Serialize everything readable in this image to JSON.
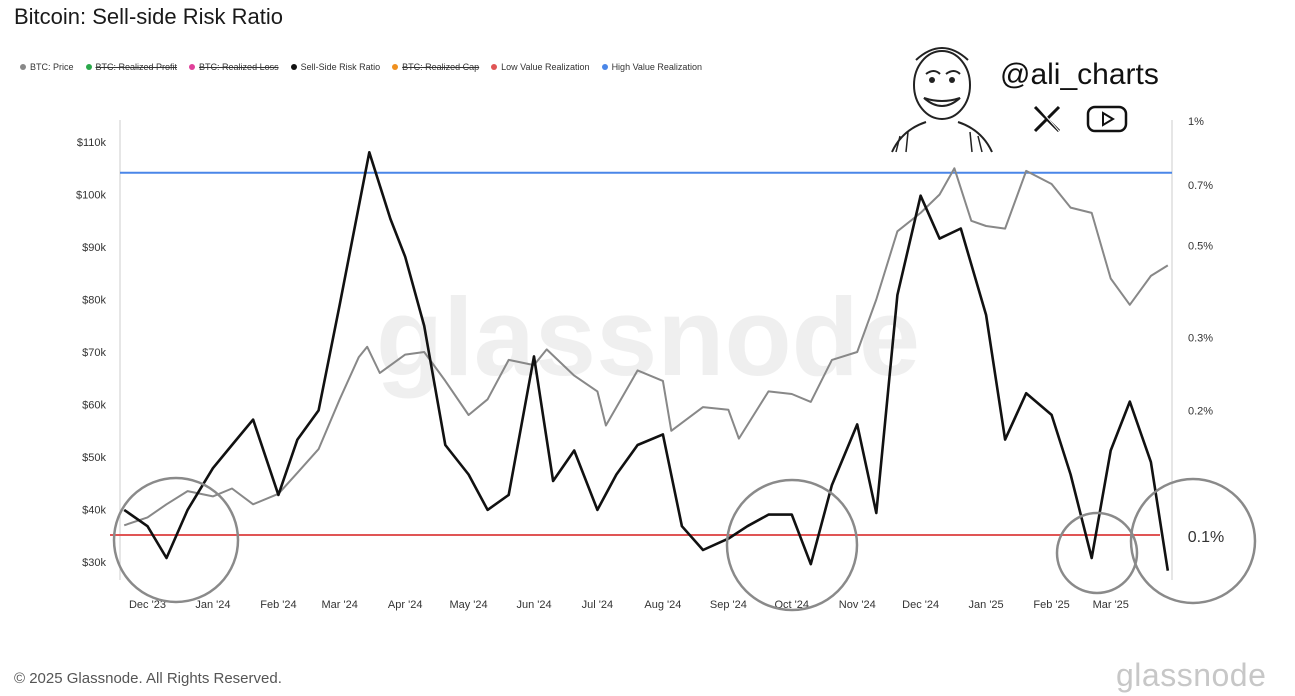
{
  "title": "Bitcoin: Sell-side Risk Ratio",
  "handle": "@ali_charts",
  "copyright": "© 2025 Glassnode. All Rights Reserved.",
  "footer_logo": "glassnode",
  "watermark": "glassnode",
  "legend": [
    {
      "label": "BTC: Price",
      "color": "#888888",
      "struck": false
    },
    {
      "label": "BTC: Realized Profit",
      "color": "#2aa84a",
      "struck": true
    },
    {
      "label": "BTC: Realized Loss",
      "color": "#e0409a",
      "struck": true
    },
    {
      "label": "Sell-Side Risk Ratio",
      "color": "#111111",
      "struck": false
    },
    {
      "label": "BTC: Realized Cap",
      "color": "#f0901e",
      "struck": true
    },
    {
      "label": "Low Value Realization",
      "color": "#e05555",
      "struck": false
    },
    {
      "label": "High Value Realization",
      "color": "#4a86e8",
      "struck": false
    }
  ],
  "annotation_label": "0.1%",
  "chart_data": {
    "type": "line",
    "title": "Bitcoin: Sell-side Risk Ratio",
    "x_ticks": [
      "Dec '23",
      "Jan '24",
      "Feb '24",
      "Mar '24",
      "Apr '24",
      "May '24",
      "Jun '24",
      "Jul '24",
      "Aug '24",
      "Sep '24",
      "Oct '24",
      "Nov '24",
      "Dec '24",
      "Jan '25",
      "Feb '25",
      "Mar '25"
    ],
    "y_left_ticks": [
      "$30k",
      "$40k",
      "$50k",
      "$60k",
      "$70k",
      "$80k",
      "$90k",
      "$100k",
      "$110k"
    ],
    "y_left_range": [
      30000,
      110000
    ],
    "y_right_ticks": [
      "0.1%",
      "0.2%",
      "0.3%",
      "0.5%",
      "0.7%",
      "1%"
    ],
    "y_right_scale": "log",
    "low_value_realization": 0.1,
    "high_value_realization": 0.75,
    "series": [
      {
        "name": "BTC: Price",
        "color": "#888888",
        "axis": "left",
        "x": [
          "2023-11-20",
          "2023-12-01",
          "2023-12-10",
          "2023-12-20",
          "2024-01-01",
          "2024-01-10",
          "2024-01-20",
          "2024-02-01",
          "2024-02-10",
          "2024-02-20",
          "2024-03-01",
          "2024-03-10",
          "2024-03-14",
          "2024-03-20",
          "2024-04-01",
          "2024-04-10",
          "2024-04-20",
          "2024-05-01",
          "2024-05-10",
          "2024-05-20",
          "2024-06-01",
          "2024-06-07",
          "2024-06-20",
          "2024-07-01",
          "2024-07-05",
          "2024-07-20",
          "2024-08-01",
          "2024-08-05",
          "2024-08-20",
          "2024-09-01",
          "2024-09-06",
          "2024-09-20",
          "2024-10-01",
          "2024-10-10",
          "2024-10-20",
          "2024-11-01",
          "2024-11-10",
          "2024-11-20",
          "2024-12-01",
          "2024-12-10",
          "2024-12-17",
          "2024-12-25",
          "2025-01-01",
          "2025-01-10",
          "2025-01-20",
          "2025-02-01",
          "2025-02-10",
          "2025-02-20",
          "2025-03-01",
          "2025-03-10",
          "2025-03-20",
          "2025-03-28"
        ],
        "y": [
          37000,
          38500,
          41000,
          43500,
          42500,
          44000,
          41000,
          43000,
          47000,
          51500,
          61000,
          69000,
          71000,
          66000,
          69500,
          70000,
          64500,
          58000,
          61000,
          68500,
          67500,
          70500,
          65500,
          62500,
          56000,
          66500,
          64500,
          55000,
          59500,
          59000,
          53500,
          62500,
          62000,
          60500,
          68500,
          70000,
          80000,
          93000,
          96500,
          100000,
          105000,
          95000,
          94000,
          93500,
          104500,
          102000,
          97500,
          96500,
          84000,
          79000,
          84500,
          86500
        ]
      },
      {
        "name": "Sell-Side Risk Ratio",
        "color": "#111111",
        "axis": "right",
        "x": [
          "2023-11-20",
          "2023-12-01",
          "2023-12-10",
          "2023-12-20",
          "2024-01-01",
          "2024-01-10",
          "2024-01-20",
          "2024-02-01",
          "2024-02-10",
          "2024-02-20",
          "2024-03-01",
          "2024-03-10",
          "2024-03-15",
          "2024-03-25",
          "2024-04-01",
          "2024-04-10",
          "2024-04-20",
          "2024-05-01",
          "2024-05-10",
          "2024-05-20",
          "2024-06-01",
          "2024-06-10",
          "2024-06-20",
          "2024-07-01",
          "2024-07-10",
          "2024-07-20",
          "2024-08-01",
          "2024-08-10",
          "2024-08-20",
          "2024-09-01",
          "2024-09-10",
          "2024-09-20",
          "2024-10-01",
          "2024-10-10",
          "2024-10-20",
          "2024-11-01",
          "2024-11-10",
          "2024-11-20",
          "2024-12-01",
          "2024-12-10",
          "2024-12-20",
          "2025-01-01",
          "2025-01-10",
          "2025-01-20",
          "2025-02-01",
          "2025-02-10",
          "2025-02-20",
          "2025-03-01",
          "2025-03-10",
          "2025-03-20",
          "2025-03-28"
        ],
        "y": [
          0.115,
          0.105,
          0.088,
          0.115,
          0.145,
          0.165,
          0.19,
          0.125,
          0.17,
          0.2,
          0.36,
          0.62,
          0.84,
          0.58,
          0.47,
          0.32,
          0.165,
          0.14,
          0.115,
          0.125,
          0.27,
          0.135,
          0.16,
          0.115,
          0.14,
          0.165,
          0.175,
          0.105,
          0.092,
          0.098,
          0.105,
          0.112,
          0.112,
          0.085,
          0.132,
          0.185,
          0.113,
          0.38,
          0.66,
          0.52,
          0.55,
          0.34,
          0.17,
          0.22,
          0.195,
          0.14,
          0.088,
          0.16,
          0.21,
          0.15,
          0.082
        ]
      }
    ]
  }
}
